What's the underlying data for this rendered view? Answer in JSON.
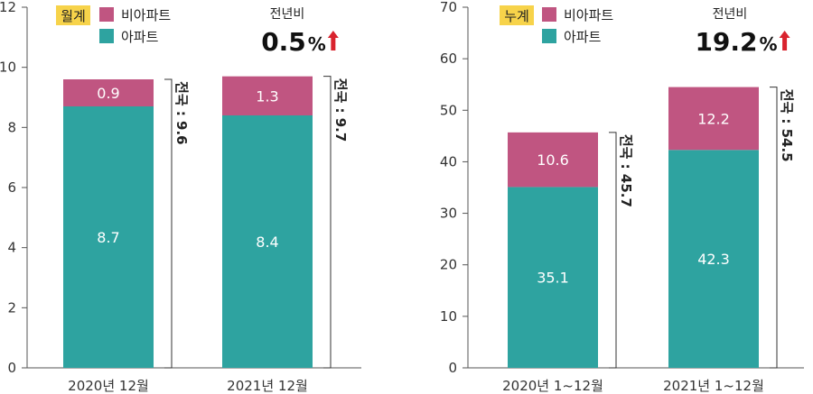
{
  "colors": {
    "apartment": "#2ea3a0",
    "non_apartment": "#c05581",
    "badge": "#f7d34a",
    "arrow": "#d9232e",
    "axis": "#555555"
  },
  "legend": {
    "non_apartment": "비아파트",
    "apartment": "아파트"
  },
  "chart_data": [
    {
      "type": "bar",
      "stacked": true,
      "badge": "월계",
      "yoy_label": "전년비",
      "yoy_value": "0.5",
      "yoy_unit": "%",
      "categories": [
        "2020년 12월",
        "2021년 12월"
      ],
      "series": [
        {
          "name": "아파트",
          "values": [
            8.7,
            8.4
          ]
        },
        {
          "name": "비아파트",
          "values": [
            0.9,
            1.3
          ]
        }
      ],
      "value_labels": {
        "apartment": [
          "8.7",
          "8.4"
        ],
        "non_apartment": [
          "0.9",
          "1.3"
        ]
      },
      "totals": [
        9.6,
        9.7
      ],
      "total_labels": [
        "전국 : 9.6",
        "전국 : 9.7"
      ],
      "ylim": [
        0,
        12
      ],
      "yticks": [
        0,
        2,
        4,
        6,
        8,
        10,
        12
      ],
      "ytick_labels": [
        "0",
        "2",
        "4",
        "6",
        "8",
        "10",
        "12"
      ],
      "legend_position": "top-left"
    },
    {
      "type": "bar",
      "stacked": true,
      "badge": "누계",
      "yoy_label": "전년비",
      "yoy_value": "19.2",
      "yoy_unit": "%",
      "categories": [
        "2020년 1~12월",
        "2021년 1~12월"
      ],
      "series": [
        {
          "name": "아파트",
          "values": [
            35.1,
            42.3
          ]
        },
        {
          "name": "비아파트",
          "values": [
            10.6,
            12.2
          ]
        }
      ],
      "value_labels": {
        "apartment": [
          "35.1",
          "42.3"
        ],
        "non_apartment": [
          "10.6",
          "12.2"
        ]
      },
      "totals": [
        45.7,
        54.5
      ],
      "total_labels": [
        "전국 : 45.7",
        "전국 : 54.5"
      ],
      "ylim": [
        0,
        70
      ],
      "yticks": [
        0,
        10,
        20,
        30,
        40,
        50,
        60,
        70
      ],
      "ytick_labels": [
        "0",
        "10",
        "20",
        "30",
        "40",
        "50",
        "60",
        "70"
      ],
      "legend_position": "top-left"
    }
  ]
}
